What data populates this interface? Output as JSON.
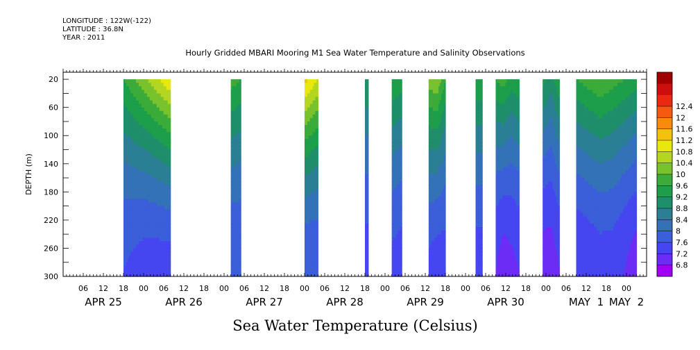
{
  "header": {
    "longitude": "LONGITUDE : 122W(-122)",
    "latitude": "LATITUDE : 36.8N",
    "year": "YEAR : 2011"
  },
  "chart_data": {
    "type": "heatmap",
    "title": "Hourly Gridded MBARI Mooring M1 Sea Water Temperature and Salinity Observations",
    "subtitle": "",
    "xlabel": "Sea Water Temperature (Celsius)",
    "ylabel": "DEPTH (m)",
    "x_unit": "hours",
    "xlim": [
      "2011-04-25T00:00",
      "2011-05-02T06:00"
    ],
    "ylim": [
      300,
      10
    ],
    "y_ticks": [
      20,
      60,
      100,
      140,
      180,
      220,
      260,
      300
    ],
    "x_hour_ticks": [
      {
        "t": "2011-04-25T06:00",
        "label": "06"
      },
      {
        "t": "2011-04-25T12:00",
        "label": "12"
      },
      {
        "t": "2011-04-25T18:00",
        "label": "18"
      },
      {
        "t": "2011-04-26T00:00",
        "label": "00"
      },
      {
        "t": "2011-04-26T06:00",
        "label": "06"
      },
      {
        "t": "2011-04-26T12:00",
        "label": "12"
      },
      {
        "t": "2011-04-26T18:00",
        "label": "18"
      },
      {
        "t": "2011-04-27T00:00",
        "label": "00"
      },
      {
        "t": "2011-04-27T06:00",
        "label": "06"
      },
      {
        "t": "2011-04-27T12:00",
        "label": "12"
      },
      {
        "t": "2011-04-27T18:00",
        "label": "18"
      },
      {
        "t": "2011-04-28T00:00",
        "label": "00"
      },
      {
        "t": "2011-04-28T06:00",
        "label": "06"
      },
      {
        "t": "2011-04-28T12:00",
        "label": "12"
      },
      {
        "t": "2011-04-28T18:00",
        "label": "18"
      },
      {
        "t": "2011-04-29T00:00",
        "label": "00"
      },
      {
        "t": "2011-04-29T06:00",
        "label": "06"
      },
      {
        "t": "2011-04-29T12:00",
        "label": "12"
      },
      {
        "t": "2011-04-29T18:00",
        "label": "18"
      },
      {
        "t": "2011-04-30T00:00",
        "label": "00"
      },
      {
        "t": "2011-04-30T06:00",
        "label": "06"
      },
      {
        "t": "2011-04-30T12:00",
        "label": "12"
      },
      {
        "t": "2011-04-30T18:00",
        "label": "18"
      },
      {
        "t": "2011-05-01T00:00",
        "label": "00"
      },
      {
        "t": "2011-05-01T06:00",
        "label": "06"
      },
      {
        "t": "2011-05-01T12:00",
        "label": "12"
      },
      {
        "t": "2011-05-01T18:00",
        "label": "18"
      },
      {
        "t": "2011-05-02T00:00",
        "label": "00"
      }
    ],
    "x_day_labels": [
      {
        "t": "2011-04-25T12:00",
        "label": "APR 25"
      },
      {
        "t": "2011-04-26T12:00",
        "label": "APR 26"
      },
      {
        "t": "2011-04-27T12:00",
        "label": "APR 27"
      },
      {
        "t": "2011-04-28T12:00",
        "label": "APR 28"
      },
      {
        "t": "2011-04-29T12:00",
        "label": "APR 29"
      },
      {
        "t": "2011-04-30T12:00",
        "label": "APR 30"
      },
      {
        "t": "2011-05-01T12:00",
        "label": "MAY  1"
      },
      {
        "t": "2011-05-02T00:00",
        "label": "MAY  2"
      }
    ],
    "colorbar": {
      "levels": [
        6.8,
        7.2,
        7.6,
        8,
        8.4,
        8.8,
        9.2,
        9.6,
        10,
        10.4,
        10.8,
        11.2,
        11.6,
        12,
        12.4
      ],
      "colors": [
        "#a100f2",
        "#6c2cf5",
        "#4646f0",
        "#3a5fd9",
        "#3472b8",
        "#2b7f94",
        "#1f8e6a",
        "#1c9e4a",
        "#3bab3a",
        "#78c22e",
        "#b4d620",
        "#e8e810",
        "#f5c010",
        "#f88a10",
        "#f55a10",
        "#ea2a10",
        "#cc0e0e",
        "#a00000"
      ],
      "tick_labels": [
        "6.8",
        "7.2",
        "7.6",
        "8",
        "8.4",
        "8.8",
        "9.2",
        "9.6",
        "10",
        "10.4",
        "10.8",
        "11.2",
        "11.6",
        "12",
        "12.4"
      ]
    },
    "segments": [
      {
        "start": "2011-04-25T18:00",
        "end": "2011-04-26T08:00",
        "t20": [
          9.6,
          10.4,
          11.2
        ],
        "t300": [
          7.6,
          7.4,
          7.4
        ]
      },
      {
        "start": "2011-04-27T02:00",
        "end": "2011-04-27T05:00",
        "t20": [
          9.8,
          9.6
        ],
        "t300": [
          7.6,
          7.6
        ]
      },
      {
        "start": "2011-04-28T00:00",
        "end": "2011-04-28T04:00",
        "t20": [
          11.4,
          10.8
        ],
        "t300": [
          7.6,
          7.6
        ]
      },
      {
        "start": "2011-04-28T18:00",
        "end": "2011-04-28T19:00",
        "t20": [
          9.2,
          9.2
        ],
        "t300": [
          7.4,
          7.4
        ]
      },
      {
        "start": "2011-04-29T02:00",
        "end": "2011-04-29T05:00",
        "t20": [
          9.6,
          9.4
        ],
        "t300": [
          7.5,
          7.4
        ]
      },
      {
        "start": "2011-04-29T13:00",
        "end": "2011-04-29T18:00",
        "t20": [
          10.2,
          10.4,
          9.6
        ],
        "t300": [
          7.5,
          7.4,
          7.4
        ]
      },
      {
        "start": "2011-04-30T03:00",
        "end": "2011-04-30T05:00",
        "t20": [
          9.6,
          9.6
        ],
        "t300": [
          7.4,
          7.4
        ]
      },
      {
        "start": "2011-04-30T09:00",
        "end": "2011-04-30T16:00",
        "t20": [
          9.6,
          9.8,
          9.4,
          9.6
        ],
        "t300": [
          7.2,
          7.0,
          7.1,
          7.2
        ]
      },
      {
        "start": "2011-04-30T23:00",
        "end": "2011-05-01T04:00",
        "t20": [
          9.4,
          9.0,
          9.6
        ],
        "t300": [
          7.0,
          7.0,
          7.2
        ]
      },
      {
        "start": "2011-05-01T09:00",
        "end": "2011-05-02T03:00",
        "t20": [
          9.6,
          9.8,
          10.0,
          9.8,
          9.6,
          9.4
        ],
        "t300": [
          7.2,
          7.3,
          7.4,
          7.4,
          7.2,
          7.0
        ]
      }
    ]
  }
}
